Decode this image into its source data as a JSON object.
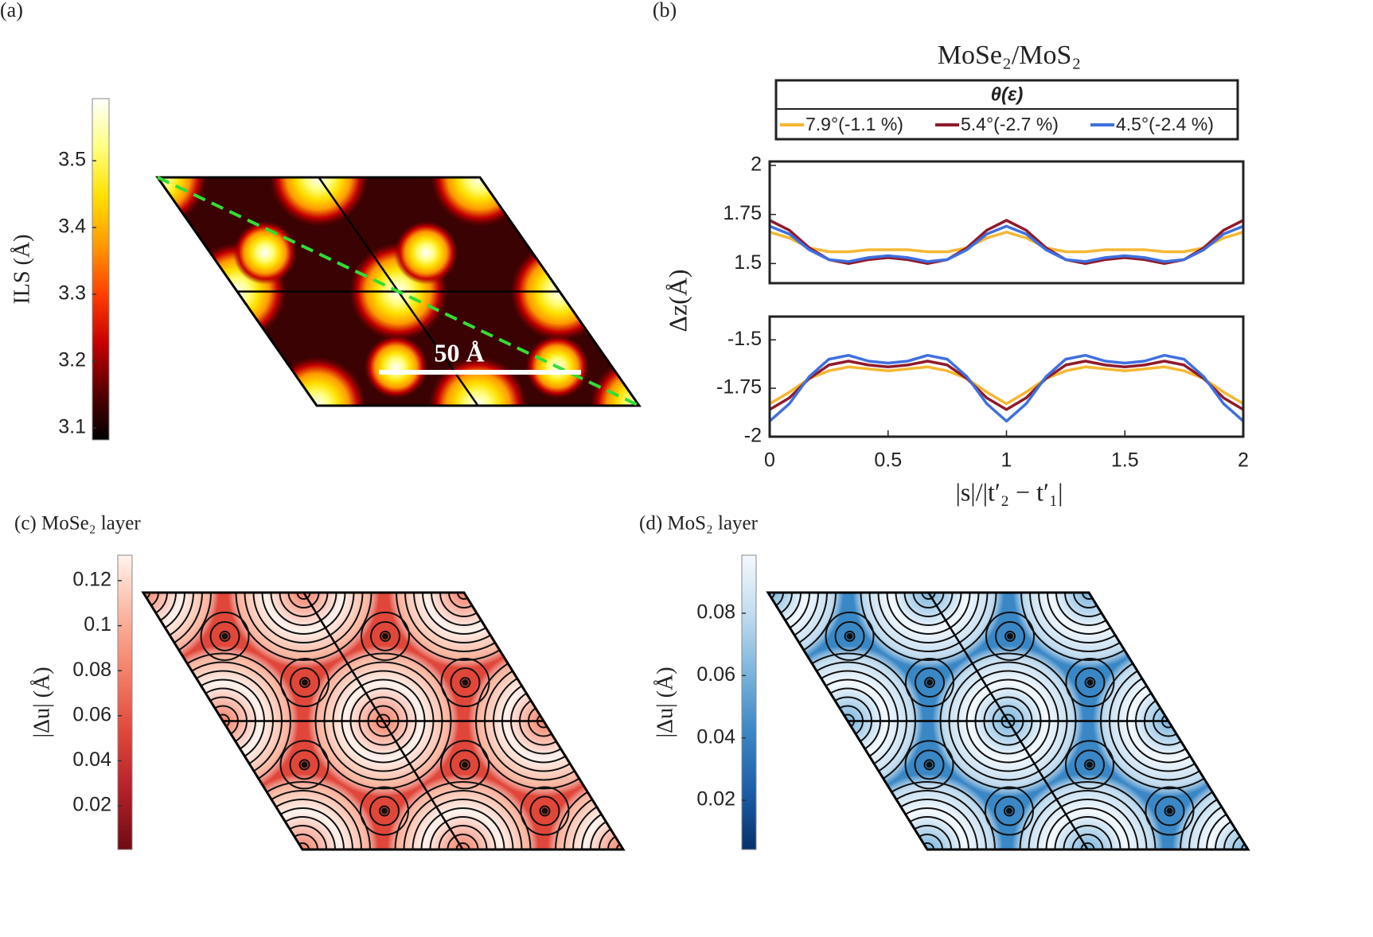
{
  "chart_data": [
    {
      "type": "heatmap",
      "panel_label": "(a)",
      "colorbar_label": "ILS (Å)",
      "clim": [
        3.082,
        3.593
      ],
      "cticks": [
        3.1,
        3.2,
        3.3,
        3.4,
        3.5
      ],
      "colormap": [
        "#000000",
        "#5a0000",
        "#c80000",
        "#ff4000",
        "#ff9a00",
        "#ffe000",
        "#ffff80",
        "#ffffff"
      ],
      "annotation": "50 Å"
    },
    {
      "type": "line",
      "panel_label": "(b)",
      "title": "MoSe₂/MoS₂",
      "legend_title": "θ(ε)",
      "ylabel": "Δz(Å)",
      "x": [
        0,
        0.083,
        0.167,
        0.25,
        0.333,
        0.417,
        0.5,
        0.583,
        0.667,
        0.75,
        0.833,
        0.917,
        1,
        1.083,
        1.167,
        1.25,
        1.333,
        1.417,
        1.5,
        1.583,
        1.667,
        1.75,
        1.833,
        1.917,
        2
      ],
      "xlim": [
        0,
        2
      ],
      "ylim": [
        1.4,
        2.02
      ],
      "yticks": [
        1.5,
        1.75,
        2
      ],
      "series": [
        {
          "name": "7.9°(-1.1 %)",
          "color": "#f5b731",
          "values": [
            1.66,
            1.63,
            1.58,
            1.56,
            1.56,
            1.57,
            1.57,
            1.57,
            1.56,
            1.56,
            1.58,
            1.63,
            1.66,
            1.63,
            1.58,
            1.56,
            1.56,
            1.57,
            1.57,
            1.57,
            1.56,
            1.56,
            1.58,
            1.63,
            1.66
          ]
        },
        {
          "name": "5.4°(-2.7 %)",
          "color": "#8e1b2c",
          "values": [
            1.72,
            1.67,
            1.58,
            1.52,
            1.5,
            1.52,
            1.53,
            1.52,
            1.5,
            1.52,
            1.58,
            1.67,
            1.72,
            1.67,
            1.58,
            1.52,
            1.5,
            1.52,
            1.53,
            1.52,
            1.5,
            1.52,
            1.58,
            1.67,
            1.72
          ]
        },
        {
          "name": "4.5°(-2.4 %)",
          "color": "#3f6fe0",
          "values": [
            1.69,
            1.65,
            1.57,
            1.52,
            1.51,
            1.53,
            1.54,
            1.53,
            1.51,
            1.52,
            1.57,
            1.65,
            1.69,
            1.65,
            1.57,
            1.52,
            1.51,
            1.53,
            1.54,
            1.53,
            1.51,
            1.52,
            1.57,
            1.65,
            1.69
          ]
        }
      ]
    },
    {
      "type": "line",
      "xlabel": "|s|/|t′₂ − t′₁|",
      "x": [
        0,
        0.083,
        0.167,
        0.25,
        0.333,
        0.417,
        0.5,
        0.583,
        0.667,
        0.75,
        0.833,
        0.917,
        1,
        1.083,
        1.167,
        1.25,
        1.333,
        1.417,
        1.5,
        1.583,
        1.667,
        1.75,
        1.833,
        1.917,
        2
      ],
      "xlim": [
        0,
        2
      ],
      "xticks": [
        0,
        0.5,
        1,
        1.5,
        2
      ],
      "ylim": [
        -2,
        -1.38
      ],
      "yticks": [
        -2,
        -1.75,
        -1.5
      ],
      "series": [
        {
          "color": "#f5b731",
          "values": [
            -1.83,
            -1.77,
            -1.7,
            -1.66,
            -1.64,
            -1.65,
            -1.66,
            -1.65,
            -1.64,
            -1.66,
            -1.7,
            -1.77,
            -1.83,
            -1.77,
            -1.7,
            -1.66,
            -1.64,
            -1.65,
            -1.66,
            -1.65,
            -1.64,
            -1.66,
            -1.7,
            -1.77,
            -1.83
          ]
        },
        {
          "color": "#8e1b2c",
          "values": [
            -1.86,
            -1.8,
            -1.7,
            -1.63,
            -1.61,
            -1.63,
            -1.64,
            -1.63,
            -1.61,
            -1.63,
            -1.7,
            -1.8,
            -1.86,
            -1.8,
            -1.7,
            -1.63,
            -1.61,
            -1.63,
            -1.64,
            -1.63,
            -1.61,
            -1.63,
            -1.7,
            -1.8,
            -1.86
          ]
        },
        {
          "color": "#3f6fe0",
          "values": [
            -1.92,
            -1.83,
            -1.69,
            -1.6,
            -1.58,
            -1.61,
            -1.62,
            -1.61,
            -1.58,
            -1.6,
            -1.69,
            -1.83,
            -1.92,
            -1.83,
            -1.69,
            -1.6,
            -1.58,
            -1.61,
            -1.62,
            -1.61,
            -1.58,
            -1.6,
            -1.69,
            -1.83,
            -1.92
          ]
        }
      ]
    },
    {
      "type": "heatmap",
      "panel_label": "(c) MoSe₂ layer",
      "colorbar_label": "|Δu| (Å)",
      "clim": [
        0.0006,
        0.1313
      ],
      "cticks": [
        0.02,
        0.04,
        0.06,
        0.08,
        0.1,
        0.12
      ],
      "colormap": [
        "#6e0a12",
        "#b3202a",
        "#e0473a",
        "#f47f68",
        "#fbb6a0",
        "#fff3ee"
      ]
    },
    {
      "type": "heatmap",
      "panel_label": "(d) MoS₂ layer",
      "colorbar_label": "|Δu| (Å)",
      "clim": [
        0.0042,
        0.0986
      ],
      "cticks": [
        0.02,
        0.04,
        0.06,
        0.08
      ],
      "colormap": [
        "#08306b",
        "#1c5ea8",
        "#3a87c6",
        "#7ab4dc",
        "#c2dcef",
        "#f4f9fe"
      ]
    }
  ]
}
